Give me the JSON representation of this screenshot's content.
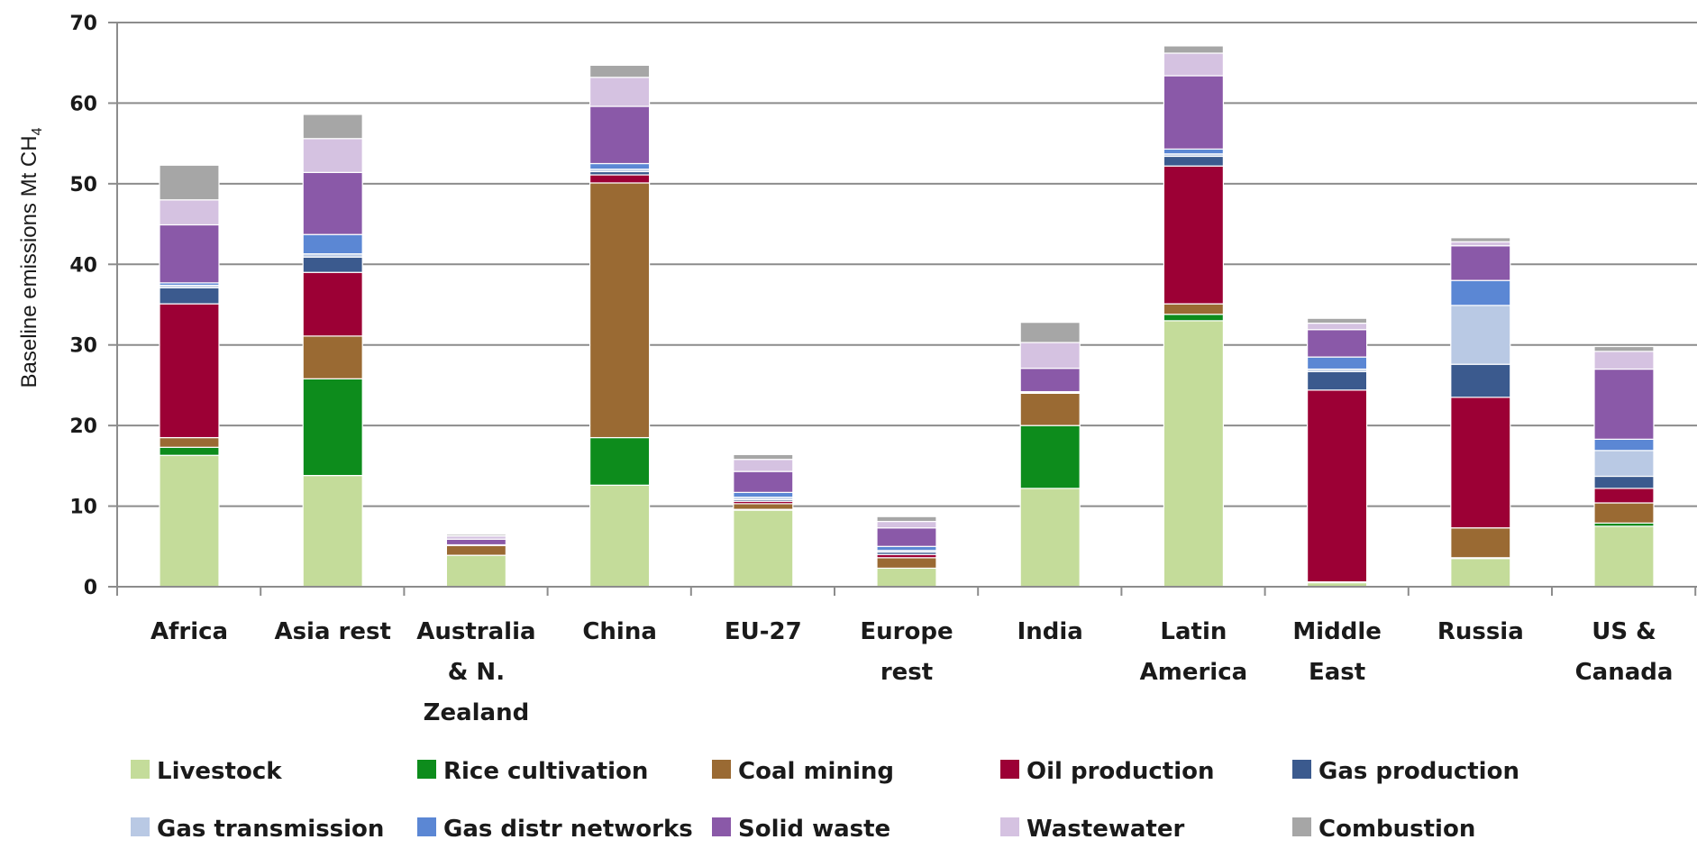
{
  "chart_data": {
    "type": "bar",
    "stacked": true,
    "ylabel": "Baseline emissions Mt CH",
    "ylabel_subscript": "4",
    "ylim": [
      0,
      70
    ],
    "yticks": [
      "0",
      "10",
      "20",
      "30",
      "40",
      "50",
      "60",
      "70"
    ],
    "grid": true,
    "legend_position": "bottom",
    "categories": [
      [
        "Africa"
      ],
      [
        "Asia rest"
      ],
      [
        "Australia",
        "& N.",
        "Zealand"
      ],
      [
        "China"
      ],
      [
        "EU-27"
      ],
      [
        "Europe",
        "rest"
      ],
      [
        "India"
      ],
      [
        "Latin",
        "America"
      ],
      [
        "Middle",
        "East"
      ],
      [
        "Russia"
      ],
      [
        "US &",
        "Canada"
      ]
    ],
    "series": [
      {
        "name": "Livestock",
        "color": "#c4dc9a",
        "values": [
          16.3,
          13.8,
          3.9,
          12.6,
          9.5,
          2.3,
          12.2,
          33.0,
          0.5,
          3.5,
          7.5
        ]
      },
      {
        "name": "Rice cultivation",
        "color": "#0d8c1c",
        "values": [
          1.0,
          12.0,
          0.0,
          5.9,
          0.1,
          0.0,
          7.8,
          0.8,
          0.0,
          0.1,
          0.4
        ]
      },
      {
        "name": "Coal mining",
        "color": "#9a6a33",
        "values": [
          1.2,
          5.3,
          1.2,
          31.6,
          0.7,
          1.3,
          4.0,
          1.3,
          0.1,
          3.7,
          2.5
        ]
      },
      {
        "name": "Oil production",
        "color": "#9c0035",
        "values": [
          16.6,
          7.9,
          0.0,
          1.0,
          0.3,
          0.4,
          0.1,
          17.1,
          23.8,
          16.2,
          1.8
        ]
      },
      {
        "name": "Gas production",
        "color": "#3b5a8e",
        "values": [
          2.0,
          1.9,
          0.0,
          0.4,
          0.2,
          0.3,
          0.0,
          1.2,
          2.3,
          4.1,
          1.5
        ]
      },
      {
        "name": "Gas transmission",
        "color": "#b9c9e4",
        "values": [
          0.3,
          0.4,
          0.0,
          0.3,
          0.3,
          0.2,
          0.0,
          0.3,
          0.3,
          7.3,
          3.2
        ]
      },
      {
        "name": "Gas distr networks",
        "color": "#5b87d4",
        "values": [
          0.3,
          2.4,
          0.1,
          0.7,
          0.6,
          0.5,
          0.1,
          0.6,
          1.5,
          3.1,
          1.4
        ]
      },
      {
        "name": "Solid waste",
        "color": "#8a59a8",
        "values": [
          7.2,
          7.7,
          0.7,
          7.1,
          2.6,
          2.3,
          2.9,
          9.1,
          3.4,
          4.3,
          8.7
        ]
      },
      {
        "name": "Wastewater",
        "color": "#d5c2e1",
        "values": [
          3.1,
          4.2,
          0.4,
          3.6,
          1.5,
          0.8,
          3.2,
          2.8,
          0.8,
          0.5,
          2.2
        ]
      },
      {
        "name": "Combustion",
        "color": "#a6a6a6",
        "values": [
          4.3,
          3.0,
          0.2,
          1.5,
          0.6,
          0.6,
          2.5,
          0.9,
          0.6,
          0.5,
          0.6
        ]
      }
    ]
  }
}
